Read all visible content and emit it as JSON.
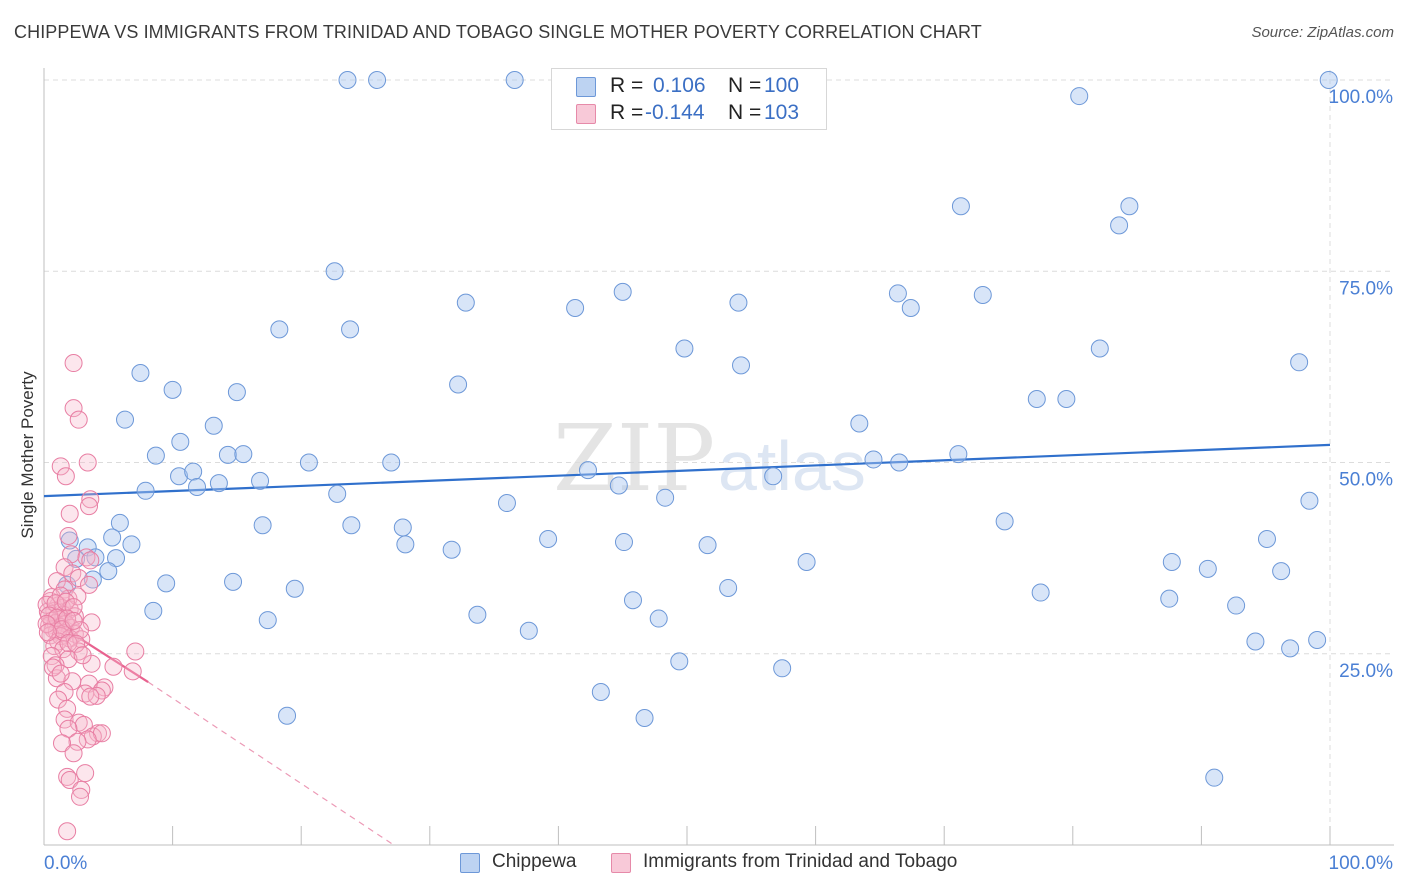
{
  "title": "CHIPPEWA VS IMMIGRANTS FROM TRINIDAD AND TOBAGO SINGLE MOTHER POVERTY CORRELATION CHART",
  "source": "Source: ZipAtlas.com",
  "watermark": {
    "zip": "ZIP",
    "atlas": "atlas"
  },
  "colors": {
    "blue": "#4a7fd4",
    "blue_fill": "#a9c6ef",
    "pink": "#e8628f",
    "pink_fill": "#f5b6cb",
    "value_text": "#3b6fc4"
  },
  "legend_top": {
    "rows": [
      {
        "r_label": "R =",
        "r_value": "0.106",
        "n_label": "N =",
        "n_value": "100"
      },
      {
        "r_label": "R =",
        "r_value": "-0.144",
        "n_label": "N =",
        "n_value": "103"
      }
    ]
  },
  "legend_bottom": {
    "series1": "Chippewa",
    "series2": "Immigrants from Trinidad and Tobago"
  },
  "chart_data": {
    "type": "scatter",
    "title": "CHIPPEWA VS IMMIGRANTS FROM TRINIDAD AND TOBAGO SINGLE MOTHER POVERTY CORRELATION CHART",
    "xlabel": "",
    "ylabel": "Single Mother Poverty",
    "xlim": [
      0,
      100
    ],
    "ylim": [
      0,
      100
    ],
    "x_tick_labels": {
      "left": "0.0%",
      "right": "100.0%"
    },
    "y_ticks": [
      {
        "value": 25,
        "label": "25.0%"
      },
      {
        "value": 50,
        "label": "50.0%"
      },
      {
        "value": 75,
        "label": "75.0%"
      },
      {
        "value": 100,
        "label": "100.0%"
      }
    ],
    "grid": true,
    "series": [
      {
        "name": "Chippewa",
        "r": 0.106,
        "n": 100,
        "trend": {
          "x": [
            0,
            100
          ],
          "y": [
            45.6,
            52.3
          ],
          "style": "solid"
        },
        "points": [
          [
            23.6,
            100
          ],
          [
            25.9,
            100
          ],
          [
            36.6,
            100
          ],
          [
            99.9,
            100
          ],
          [
            80.5,
            97.9
          ],
          [
            71.3,
            83.5
          ],
          [
            84.4,
            83.5
          ],
          [
            83.6,
            81.0
          ],
          [
            22.6,
            75.0
          ],
          [
            32.8,
            70.9
          ],
          [
            41.3,
            70.2
          ],
          [
            45.0,
            72.3
          ],
          [
            54.0,
            70.9
          ],
          [
            66.4,
            72.1
          ],
          [
            67.4,
            70.2
          ],
          [
            73.0,
            71.9
          ],
          [
            18.3,
            67.4
          ],
          [
            23.8,
            67.4
          ],
          [
            49.8,
            64.9
          ],
          [
            54.2,
            62.7
          ],
          [
            82.1,
            64.9
          ],
          [
            97.6,
            63.1
          ],
          [
            7.5,
            61.7
          ],
          [
            10.0,
            59.5
          ],
          [
            15.0,
            59.2
          ],
          [
            32.2,
            60.2
          ],
          [
            77.2,
            58.3
          ],
          [
            79.5,
            58.3
          ],
          [
            6.3,
            55.6
          ],
          [
            13.2,
            54.8
          ],
          [
            63.4,
            55.1
          ],
          [
            8.7,
            50.9
          ],
          [
            10.6,
            52.7
          ],
          [
            14.3,
            51.0
          ],
          [
            15.5,
            51.1
          ],
          [
            20.6,
            50.0
          ],
          [
            27.0,
            50.0
          ],
          [
            64.5,
            50.4
          ],
          [
            66.5,
            50.0
          ],
          [
            71.1,
            51.1
          ],
          [
            10.5,
            48.2
          ],
          [
            11.6,
            48.8
          ],
          [
            11.9,
            46.8
          ],
          [
            13.6,
            47.3
          ],
          [
            16.8,
            47.6
          ],
          [
            7.9,
            46.3
          ],
          [
            22.8,
            45.9
          ],
          [
            42.3,
            49.0
          ],
          [
            48.3,
            45.4
          ],
          [
            56.7,
            48.2
          ],
          [
            98.4,
            45.0
          ],
          [
            5.9,
            42.1
          ],
          [
            23.9,
            41.8
          ],
          [
            27.9,
            41.5
          ],
          [
            74.7,
            42.3
          ],
          [
            2.0,
            39.8
          ],
          [
            3.4,
            38.9
          ],
          [
            5.3,
            40.2
          ],
          [
            6.8,
            39.3
          ],
          [
            28.1,
            39.3
          ],
          [
            31.7,
            38.6
          ],
          [
            39.2,
            40.0
          ],
          [
            45.1,
            39.6
          ],
          [
            51.6,
            39.2
          ],
          [
            95.1,
            40.0
          ],
          [
            2.5,
            37.4
          ],
          [
            4.0,
            37.6
          ],
          [
            5.6,
            37.5
          ],
          [
            5.0,
            35.8
          ],
          [
            3.8,
            34.7
          ],
          [
            1.8,
            34.0
          ],
          [
            9.5,
            34.2
          ],
          [
            14.7,
            34.4
          ],
          [
            19.5,
            33.5
          ],
          [
            59.3,
            37.0
          ],
          [
            87.7,
            37.0
          ],
          [
            90.5,
            36.1
          ],
          [
            96.2,
            35.8
          ],
          [
            45.8,
            32.0
          ],
          [
            53.2,
            33.6
          ],
          [
            77.5,
            33.0
          ],
          [
            87.5,
            32.2
          ],
          [
            92.7,
            31.3
          ],
          [
            8.5,
            30.6
          ],
          [
            17.4,
            29.4
          ],
          [
            33.7,
            30.1
          ],
          [
            37.7,
            28.0
          ],
          [
            47.8,
            29.6
          ],
          [
            94.2,
            26.6
          ],
          [
            96.9,
            25.7
          ],
          [
            99.0,
            26.8
          ],
          [
            49.4,
            24.0
          ],
          [
            57.4,
            23.1
          ],
          [
            43.3,
            20.0
          ],
          [
            46.7,
            16.6
          ],
          [
            18.9,
            16.9
          ],
          [
            91.0,
            8.8
          ],
          [
            17.0,
            41.8
          ],
          [
            36.0,
            44.7
          ],
          [
            44.7,
            47.0
          ]
        ]
      },
      {
        "name": "Immigrants from Trinidad and Tobago",
        "r": -0.144,
        "n": 103,
        "trend": {
          "x": [
            0,
            8.1
          ],
          "y": [
            30.0,
            21.3
          ],
          "style": "solid",
          "extension": {
            "x": [
              8.1,
              27.2
            ],
            "y": [
              21.3,
              0
            ],
            "style": "dashed"
          }
        },
        "points": [
          [
            2.3,
            63.0
          ],
          [
            2.3,
            57.1
          ],
          [
            2.7,
            55.6
          ],
          [
            1.3,
            49.5
          ],
          [
            3.4,
            50.0
          ],
          [
            1.7,
            48.2
          ],
          [
            3.6,
            45.2
          ],
          [
            3.5,
            44.3
          ],
          [
            2.0,
            43.3
          ],
          [
            1.9,
            40.4
          ],
          [
            2.1,
            38.0
          ],
          [
            3.3,
            37.6
          ],
          [
            3.6,
            37.2
          ],
          [
            1.6,
            36.3
          ],
          [
            2.2,
            35.5
          ],
          [
            2.7,
            34.9
          ],
          [
            1.0,
            34.5
          ],
          [
            3.5,
            34.0
          ],
          [
            1.6,
            33.4
          ],
          [
            1.9,
            32.2
          ],
          [
            0.5,
            31.9
          ],
          [
            1.1,
            31.3
          ],
          [
            1.4,
            31.0
          ],
          [
            2.0,
            30.8
          ],
          [
            0.8,
            30.6
          ],
          [
            0.3,
            30.5
          ],
          [
            1.5,
            30.1
          ],
          [
            2.4,
            29.9
          ],
          [
            1.2,
            29.5
          ],
          [
            0.6,
            29.3
          ],
          [
            0.9,
            29.0
          ],
          [
            1.7,
            28.9
          ],
          [
            3.7,
            29.1
          ],
          [
            0.4,
            28.7
          ],
          [
            1.3,
            28.5
          ],
          [
            2.1,
            28.4
          ],
          [
            0.7,
            28.2
          ],
          [
            1.0,
            27.9
          ],
          [
            1.6,
            27.7
          ],
          [
            2.4,
            27.6
          ],
          [
            0.5,
            27.4
          ],
          [
            1.3,
            27.3
          ],
          [
            2.0,
            27.0
          ],
          [
            2.9,
            26.9
          ],
          [
            1.1,
            26.6
          ],
          [
            0.8,
            26.0
          ],
          [
            1.5,
            25.6
          ],
          [
            2.7,
            25.3
          ],
          [
            7.1,
            25.3
          ],
          [
            0.6,
            24.7
          ],
          [
            1.9,
            24.3
          ],
          [
            3.7,
            23.7
          ],
          [
            0.9,
            23.5
          ],
          [
            5.4,
            23.3
          ],
          [
            6.9,
            22.7
          ],
          [
            1.0,
            21.8
          ],
          [
            2.2,
            21.4
          ],
          [
            3.5,
            21.1
          ],
          [
            4.7,
            20.6
          ],
          [
            4.5,
            20.2
          ],
          [
            1.6,
            20.0
          ],
          [
            3.2,
            19.8
          ],
          [
            4.1,
            19.5
          ],
          [
            3.6,
            19.4
          ],
          [
            1.1,
            19.0
          ],
          [
            1.8,
            17.8
          ],
          [
            1.6,
            16.4
          ],
          [
            2.7,
            16.0
          ],
          [
            3.1,
            15.7
          ],
          [
            1.9,
            15.2
          ],
          [
            4.2,
            14.6
          ],
          [
            3.8,
            14.2
          ],
          [
            4.5,
            14.6
          ],
          [
            3.4,
            13.8
          ],
          [
            2.6,
            13.5
          ],
          [
            1.4,
            13.3
          ],
          [
            2.3,
            12.0
          ],
          [
            3.2,
            9.4
          ],
          [
            1.8,
            8.9
          ],
          [
            2.0,
            8.5
          ],
          [
            2.9,
            7.2
          ],
          [
            2.8,
            6.3
          ],
          [
            1.8,
            1.8
          ],
          [
            0.6,
            32.4
          ],
          [
            1.3,
            32.6
          ],
          [
            2.6,
            32.5
          ],
          [
            0.2,
            31.4
          ],
          [
            0.9,
            31.6
          ],
          [
            1.7,
            31.8
          ],
          [
            2.3,
            31.1
          ],
          [
            0.4,
            30.0
          ],
          [
            1.0,
            29.7
          ],
          [
            1.8,
            29.6
          ],
          [
            0.2,
            28.9
          ],
          [
            1.4,
            28.2
          ],
          [
            2.8,
            28.1
          ],
          [
            0.3,
            27.8
          ],
          [
            1.9,
            26.4
          ],
          [
            2.5,
            26.3
          ],
          [
            3.0,
            24.8
          ],
          [
            0.7,
            23.2
          ],
          [
            1.3,
            22.4
          ],
          [
            2.3,
            29.3
          ]
        ]
      }
    ]
  }
}
